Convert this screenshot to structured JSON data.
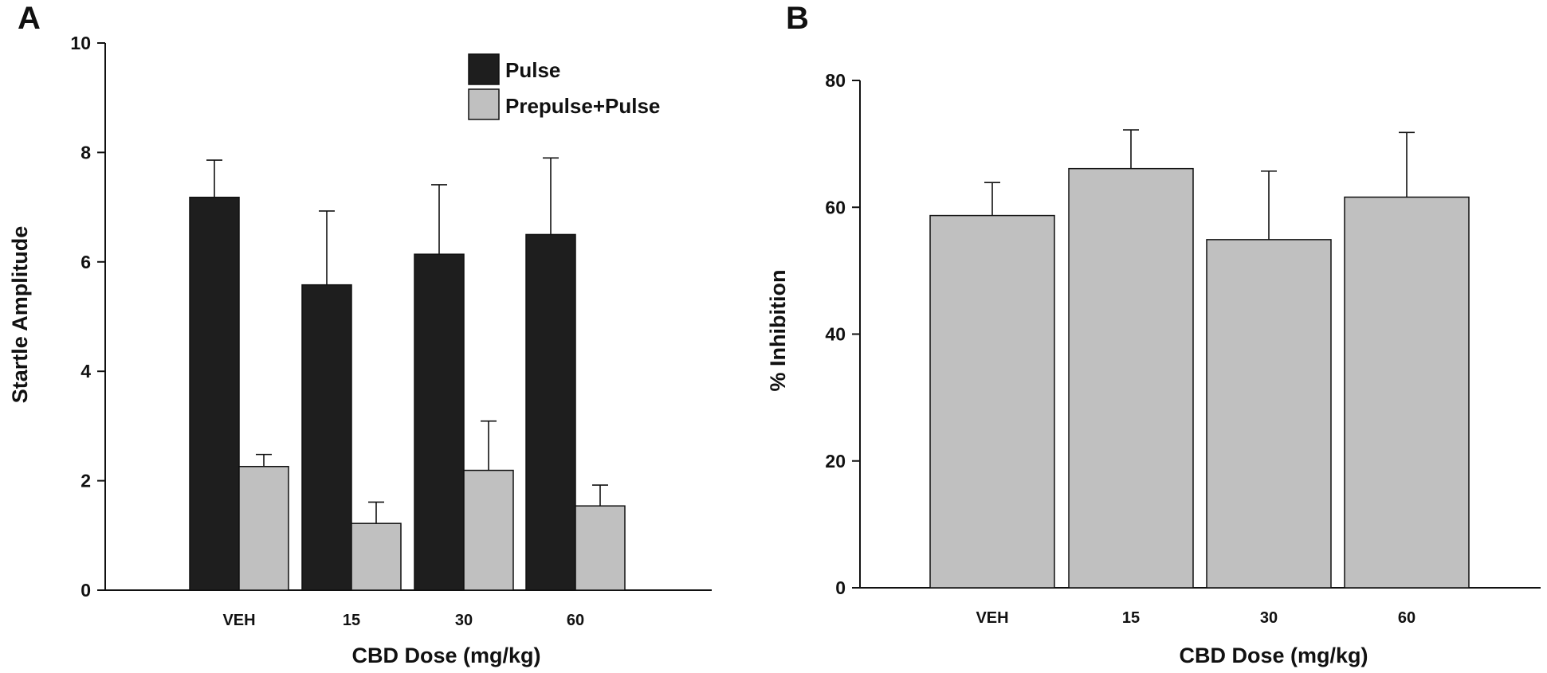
{
  "chart_data": [
    {
      "panel": "A",
      "type": "bar",
      "categories": [
        "VEH",
        "15",
        "30",
        "60"
      ],
      "series": [
        {
          "name": "Pulse",
          "color": "#1e1e1e",
          "values": [
            7.18,
            5.58,
            6.14,
            6.5
          ],
          "errors": [
            0.68,
            1.35,
            1.27,
            1.4
          ]
        },
        {
          "name": "Prepulse+Pulse",
          "color": "#c0c0c0",
          "values": [
            2.26,
            1.22,
            2.19,
            1.54
          ],
          "errors": [
            0.22,
            0.39,
            0.9,
            0.38
          ]
        }
      ],
      "xlabel": "CBD Dose (mg/kg)",
      "ylabel": "Startle Amplitude",
      "ylim": [
        0,
        10
      ],
      "yticks": [
        "0",
        "2",
        "4",
        "6",
        "8",
        "10"
      ],
      "legend_position": "top-right"
    },
    {
      "panel": "B",
      "type": "bar",
      "categories": [
        "VEH",
        "15",
        "30",
        "60"
      ],
      "series": [
        {
          "name": "% Inhibition",
          "color": "#c0c0c0",
          "values": [
            58.7,
            66.1,
            54.9,
            61.6
          ],
          "errors": [
            5.2,
            6.1,
            10.8,
            10.2
          ]
        }
      ],
      "xlabel": "CBD Dose (mg/kg)",
      "ylabel": "% Inhibition",
      "ylim": [
        0,
        80
      ],
      "yticks": [
        "0",
        "20",
        "40",
        "60",
        "80"
      ]
    }
  ]
}
